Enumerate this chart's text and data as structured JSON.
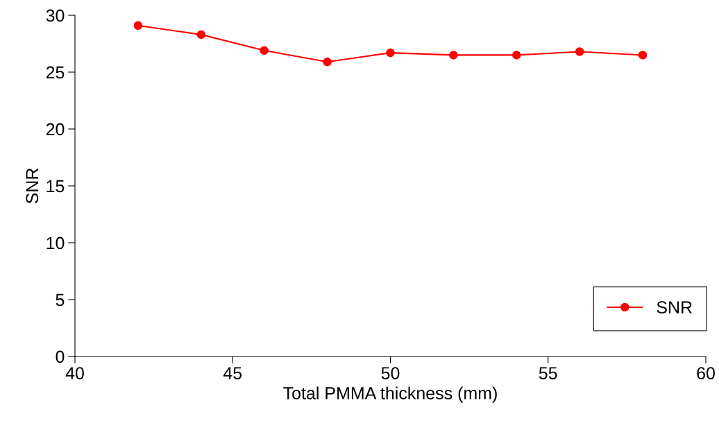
{
  "chart_data": {
    "type": "line",
    "xlabel": "Total PMMA thickness (mm)",
    "ylabel": "SNR",
    "x": [
      42,
      44,
      46,
      48,
      50,
      52,
      54,
      56,
      58
    ],
    "series": [
      {
        "name": "SNR",
        "color": "#ff0000",
        "values": [
          29.1,
          28.3,
          26.9,
          25.9,
          26.7,
          26.5,
          26.5,
          26.8,
          26.5
        ]
      }
    ],
    "xlim": [
      40,
      60
    ],
    "xticks": [
      40,
      45,
      50,
      55,
      60
    ],
    "ylim": [
      0,
      30
    ],
    "yticks": [
      0,
      5,
      10,
      15,
      20,
      25,
      30
    ],
    "grid": false,
    "legend": "bottom right",
    "marker": "circle",
    "line_style": "solid"
  }
}
